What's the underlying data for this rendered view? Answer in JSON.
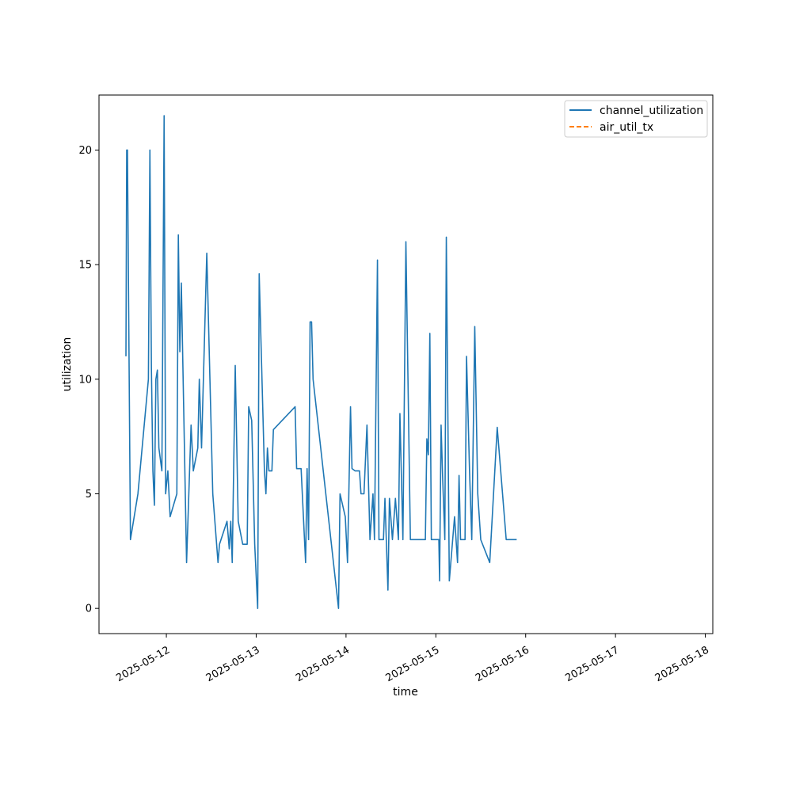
{
  "chart_data": {
    "type": "line",
    "title": "",
    "xlabel": "time",
    "ylabel": "utilization",
    "xlim": [
      "2025-05-11 06:00",
      "2025-05-18 02:00"
    ],
    "ylim": [
      -1.1,
      22.4
    ],
    "x_ticks": [
      "2025-05-12",
      "2025-05-13",
      "2025-05-14",
      "2025-05-15",
      "2025-05-16",
      "2025-05-17",
      "2025-05-18"
    ],
    "y_ticks": [
      0,
      5,
      10,
      15,
      20
    ],
    "grid": false,
    "legend_position": "top-right",
    "series": [
      {
        "name": "channel_utilization",
        "color": "#1f77b4",
        "style": "solid",
        "points": [
          [
            "2025-05-11 13:12",
            11.0
          ],
          [
            "2025-05-11 13:24",
            20.0
          ],
          [
            "2025-05-11 13:36",
            20.0
          ],
          [
            "2025-05-11 14:24",
            3.0
          ],
          [
            "2025-05-11 16:24",
            5.0
          ],
          [
            "2025-05-11 19:12",
            10.0
          ],
          [
            "2025-05-11 19:36",
            20.0
          ],
          [
            "2025-05-11 20:00",
            10.5
          ],
          [
            "2025-05-11 20:24",
            6.0
          ],
          [
            "2025-05-11 20:48",
            4.5
          ],
          [
            "2025-05-11 21:12",
            10.0
          ],
          [
            "2025-05-11 21:36",
            10.4
          ],
          [
            "2025-05-11 22:00",
            7.0
          ],
          [
            "2025-05-11 22:48",
            6.0
          ],
          [
            "2025-05-11 23:24",
            21.5
          ],
          [
            "2025-05-11 23:48",
            5.0
          ],
          [
            "2025-05-12 00:24",
            6.0
          ],
          [
            "2025-05-12 01:00",
            4.0
          ],
          [
            "2025-05-12 02:48",
            5.0
          ],
          [
            "2025-05-12 03:12",
            16.3
          ],
          [
            "2025-05-12 03:36",
            11.2
          ],
          [
            "2025-05-12 04:00",
            14.2
          ],
          [
            "2025-05-12 05:24",
            2.0
          ],
          [
            "2025-05-12 06:36",
            8.0
          ],
          [
            "2025-05-12 07:12",
            6.0
          ],
          [
            "2025-05-12 08:24",
            7.0
          ],
          [
            "2025-05-12 08:48",
            10.0
          ],
          [
            "2025-05-12 09:24",
            7.0
          ],
          [
            "2025-05-12 10:48",
            15.5
          ],
          [
            "2025-05-12 12:24",
            5.0
          ],
          [
            "2025-05-12 13:48",
            2.0
          ],
          [
            "2025-05-12 14:12",
            2.8
          ],
          [
            "2025-05-12 16:12",
            3.8
          ],
          [
            "2025-05-12 16:48",
            2.6
          ],
          [
            "2025-05-12 17:12",
            3.8
          ],
          [
            "2025-05-12 17:36",
            2.0
          ],
          [
            "2025-05-12 18:24",
            10.6
          ],
          [
            "2025-05-12 19:12",
            3.8
          ],
          [
            "2025-05-12 20:24",
            2.8
          ],
          [
            "2025-05-12 21:36",
            2.8
          ],
          [
            "2025-05-12 22:00",
            8.8
          ],
          [
            "2025-05-12 22:48",
            8.2
          ],
          [
            "2025-05-12 23:36",
            2.8
          ],
          [
            "2025-05-13 00:24",
            0.0
          ],
          [
            "2025-05-13 00:48",
            14.6
          ],
          [
            "2025-05-13 02:12",
            6.0
          ],
          [
            "2025-05-13 02:36",
            5.0
          ],
          [
            "2025-05-13 03:00",
            7.0
          ],
          [
            "2025-05-13 03:24",
            6.0
          ],
          [
            "2025-05-13 04:12",
            6.0
          ],
          [
            "2025-05-13 04:36",
            7.8
          ],
          [
            "2025-05-13 10:24",
            8.8
          ],
          [
            "2025-05-13 10:48",
            6.1
          ],
          [
            "2025-05-13 12:00",
            6.1
          ],
          [
            "2025-05-13 13:12",
            2.0
          ],
          [
            "2025-05-13 13:36",
            6.1
          ],
          [
            "2025-05-13 14:00",
            3.0
          ],
          [
            "2025-05-13 14:24",
            12.5
          ],
          [
            "2025-05-13 14:48",
            12.5
          ],
          [
            "2025-05-13 15:12",
            10.0
          ],
          [
            "2025-05-13 22:00",
            0.0
          ],
          [
            "2025-05-13 22:24",
            5.0
          ],
          [
            "2025-05-13 23:48",
            4.0
          ],
          [
            "2025-05-14 00:24",
            2.0
          ],
          [
            "2025-05-14 01:12",
            8.8
          ],
          [
            "2025-05-14 01:36",
            6.1
          ],
          [
            "2025-05-14 02:24",
            6.0
          ],
          [
            "2025-05-14 03:36",
            6.0
          ],
          [
            "2025-05-14 04:00",
            5.0
          ],
          [
            "2025-05-14 04:48",
            5.0
          ],
          [
            "2025-05-14 05:36",
            8.0
          ],
          [
            "2025-05-14 06:24",
            3.0
          ],
          [
            "2025-05-14 07:12",
            5.0
          ],
          [
            "2025-05-14 07:36",
            3.0
          ],
          [
            "2025-05-14 08:24",
            15.2
          ],
          [
            "2025-05-14 08:48",
            3.0
          ],
          [
            "2025-05-14 09:36",
            3.0
          ],
          [
            "2025-05-14 10:00",
            3.0
          ],
          [
            "2025-05-14 10:24",
            4.8
          ],
          [
            "2025-05-14 11:12",
            0.8
          ],
          [
            "2025-05-14 11:36",
            4.8
          ],
          [
            "2025-05-14 12:24",
            3.0
          ],
          [
            "2025-05-14 13:12",
            4.8
          ],
          [
            "2025-05-14 14:00",
            3.0
          ],
          [
            "2025-05-14 14:24",
            8.5
          ],
          [
            "2025-05-14 15:12",
            3.0
          ],
          [
            "2025-05-14 16:00",
            16.0
          ],
          [
            "2025-05-14 17:12",
            3.0
          ],
          [
            "2025-05-14 18:48",
            3.0
          ],
          [
            "2025-05-14 19:36",
            3.0
          ],
          [
            "2025-05-14 21:12",
            3.0
          ],
          [
            "2025-05-14 21:36",
            7.4
          ],
          [
            "2025-05-14 22:00",
            6.7
          ],
          [
            "2025-05-14 22:24",
            12.0
          ],
          [
            "2025-05-14 22:48",
            3.0
          ],
          [
            "2025-05-14 23:36",
            3.0
          ],
          [
            "2025-05-15 01:00",
            1.2
          ],
          [
            "2025-05-15 01:24",
            8.0
          ],
          [
            "2025-05-15 01:48",
            5.8
          ],
          [
            "2025-05-15 02:48",
            16.2
          ],
          [
            "2025-05-15 03:36",
            1.2
          ],
          [
            "2025-05-15 05:00",
            4.0
          ],
          [
            "2025-05-15 05:48",
            2.0
          ],
          [
            "2025-05-15 06:12",
            5.8
          ],
          [
            "2025-05-15 06:36",
            3.0
          ],
          [
            "2025-05-15 07:48",
            3.0
          ],
          [
            "2025-05-15 08:12",
            11.0
          ],
          [
            "2025-05-15 09:00",
            6.0
          ],
          [
            "2025-05-15 09:36",
            3.0
          ],
          [
            "2025-05-15 10:24",
            12.3
          ],
          [
            "2025-05-15 11:12",
            5.0
          ],
          [
            "2025-05-15 12:00",
            3.0
          ],
          [
            "2025-05-15 14:24",
            2.0
          ],
          [
            "2025-05-15 16:24",
            7.9
          ],
          [
            "2025-05-15 18:48",
            3.0
          ],
          [
            "2025-05-15 21:36",
            3.0
          ],
          [
            "2025-05-15 00:48",
            3.0
          ],
          [
            "2025-05-15 02:24",
            3.0
          ]
        ]
      },
      {
        "name": "air_util_tx",
        "color": "#ff7f0e",
        "style": "dashed",
        "points": []
      }
    ]
  }
}
